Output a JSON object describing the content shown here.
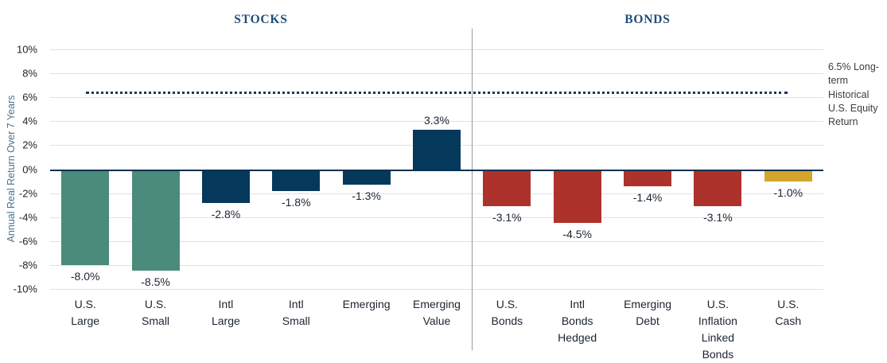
{
  "chart_data": {
    "type": "bar",
    "ylabel": "Annual Real Return Over 7 Years",
    "ylim": [
      -10,
      10
    ],
    "grid": true,
    "groups": [
      {
        "label": "STOCKS",
        "bar_count": 6
      },
      {
        "label": "BONDS",
        "bar_count": 5
      }
    ],
    "yticks": [
      {
        "value": 10,
        "label": "10%"
      },
      {
        "value": 8,
        "label": "8%"
      },
      {
        "value": 6,
        "label": "6%"
      },
      {
        "value": 4,
        "label": "4%"
      },
      {
        "value": 2,
        "label": "2%"
      },
      {
        "value": 0,
        "label": "0%"
      },
      {
        "value": -2,
        "label": "-2%"
      },
      {
        "value": -4,
        "label": "-4%"
      },
      {
        "value": -6,
        "label": "-6%"
      },
      {
        "value": -8,
        "label": "-8%"
      },
      {
        "value": -10,
        "label": "-10%"
      }
    ],
    "points": [
      {
        "category": "U.S.\nLarge",
        "value": -8.0,
        "value_label": "-8.0%",
        "color": "#4A8B7B"
      },
      {
        "category": "U.S.\nSmall",
        "value": -8.5,
        "value_label": "-8.5%",
        "color": "#4A8B7B"
      },
      {
        "category": "Intl\nLarge",
        "value": -2.8,
        "value_label": "-2.8%",
        "color": "#04395B"
      },
      {
        "category": "Intl\nSmall",
        "value": -1.8,
        "value_label": "-1.8%",
        "color": "#04395B"
      },
      {
        "category": "Emerging",
        "value": -1.3,
        "value_label": "-1.3%",
        "color": "#04395B"
      },
      {
        "category": "Emerging\nValue",
        "value": 3.3,
        "value_label": "3.3%",
        "color": "#04395B"
      },
      {
        "category": "U.S.\nBonds",
        "value": -3.1,
        "value_label": "-3.1%",
        "color": "#AD322B"
      },
      {
        "category": "Intl\nBonds\nHedged",
        "value": -4.5,
        "value_label": "-4.5%",
        "color": "#AD322B"
      },
      {
        "category": "Emerging\nDebt",
        "value": -1.4,
        "value_label": "-1.4%",
        "color": "#AD322B"
      },
      {
        "category": "U.S.\nInflation\nLinked\nBonds",
        "value": -3.1,
        "value_label": "-3.1%",
        "color": "#AD322B"
      },
      {
        "category": "U.S.\nCash",
        "value": -1.0,
        "value_label": "-1.0%",
        "color": "#D4A62B"
      }
    ],
    "reference_line": {
      "value": 6.5,
      "label": "6.5% Long-\nterm\nHistorical\nU.S. Equity\nReturn",
      "color": "#0b3a5d",
      "style": "dotted"
    },
    "palette": {
      "stocks_us": "#4A8B7B",
      "stocks_intl_emerging": "#04395B",
      "bonds": "#AD322B",
      "cash": "#D4A62B",
      "header_text": "#1F4E79",
      "gridline": "#d7e4ee",
      "zero_axis": "#0a3050",
      "axis_title_text": "#4c7390",
      "divider": "#9b9b9b"
    }
  }
}
